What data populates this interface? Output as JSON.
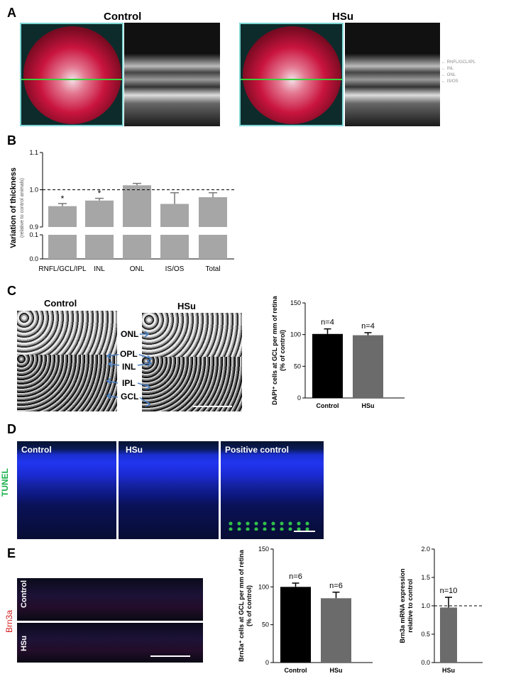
{
  "panels": {
    "A": {
      "letter": "A",
      "control_title": "Control",
      "hsu_title": "HSu",
      "layer_labels": [
        "RNFL/GCL/IPL",
        "INL",
        "ONL",
        "IS/OS"
      ]
    },
    "B": {
      "letter": "B"
    },
    "C": {
      "letter": "C",
      "control_title": "Control",
      "hsu_title": "HSu",
      "layers": [
        "ONL",
        "OPL",
        "INL",
        "IPL",
        "GCL"
      ]
    },
    "D": {
      "letter": "D",
      "side_label": "TUNEL",
      "side_label_color": "#19b04b",
      "images": [
        "Control",
        "HSu",
        "Positive control"
      ]
    },
    "E": {
      "letter": "E",
      "side_label": "Brn3a",
      "side_label_color": "#d42020",
      "rows": [
        "Control",
        "HSu"
      ]
    }
  },
  "chart_data": [
    {
      "id": "B",
      "type": "bar",
      "categories": [
        "RNFL/GCL/IPL",
        "INL",
        "ONL",
        "IS/OS",
        "Total"
      ],
      "values": [
        0.956,
        0.971,
        1.012,
        0.962,
        0.98
      ],
      "errors": [
        0.007,
        0.006,
        0.005,
        0.03,
        0.012
      ],
      "significance": [
        "*",
        "*",
        "",
        "",
        ""
      ],
      "ylabel": "Variation of thickness",
      "ylabel_sub": "(relative to control animals)",
      "yticks_upper": [
        "1.1",
        "1.0",
        "0.9"
      ],
      "yticks_lower": [
        "0.1",
        "0.0"
      ],
      "ylim_upper": [
        0.9,
        1.1
      ],
      "reference_line": 1.0,
      "color": "#a6a6a6"
    },
    {
      "id": "C",
      "type": "bar",
      "categories": [
        "Control",
        "HSu"
      ],
      "values": [
        101,
        99
      ],
      "errors": [
        8,
        4
      ],
      "annotations": [
        "n=4",
        "n=4"
      ],
      "ylabel": "DAPI⁺ cells at GCL per mm of retina",
      "ylabel_sub": "(% of control)",
      "ylim": [
        0,
        150
      ],
      "yticks": [
        "0",
        "50",
        "100",
        "150"
      ],
      "colors": [
        "#000000",
        "#6b6b6b"
      ]
    },
    {
      "id": "E1",
      "type": "bar",
      "categories": [
        "Control",
        "HSu"
      ],
      "values": [
        100,
        85
      ],
      "errors": [
        5,
        8
      ],
      "annotations": [
        "n=6",
        "n=6"
      ],
      "ylabel": "Brn3a⁺ cells at GCL per mm of retina",
      "ylabel_sub": "(% of control)",
      "ylim": [
        0,
        150
      ],
      "yticks": [
        "0",
        "50",
        "100",
        "150"
      ],
      "colors": [
        "#000000",
        "#6b6b6b"
      ]
    },
    {
      "id": "E2",
      "type": "bar",
      "categories": [
        "HSu"
      ],
      "values": [
        0.97
      ],
      "errors": [
        0.18
      ],
      "annotations": [
        "n=10"
      ],
      "ylabel": "Brn3a mRNA expression",
      "ylabel_sub": "relative to control",
      "ylim": [
        0,
        2.0
      ],
      "yticks": [
        "0.0",
        "0.5",
        "1.0",
        "1.5",
        "2.0"
      ],
      "reference_line": 1.0,
      "colors": [
        "#6b6b6b"
      ]
    }
  ]
}
